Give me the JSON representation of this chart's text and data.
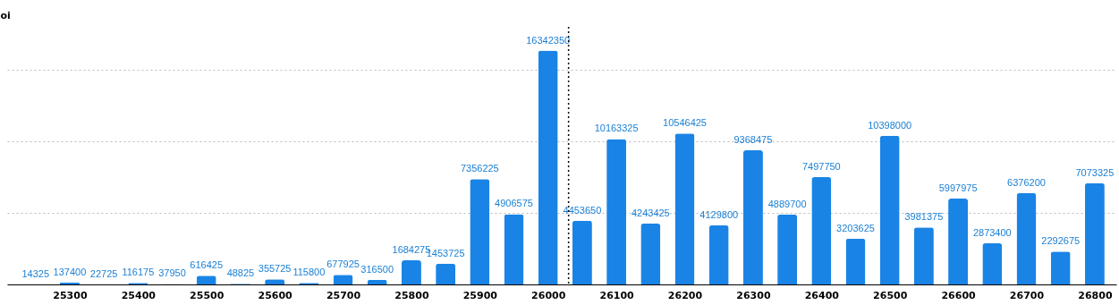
{
  "chart_data": {
    "type": "bar",
    "ylabel": "oi",
    "x": [
      25250,
      25300,
      25350,
      25400,
      25450,
      25500,
      25550,
      25600,
      25650,
      25700,
      25750,
      25800,
      25850,
      25900,
      25950,
      26000,
      26050,
      26100,
      26150,
      26200,
      26250,
      26300,
      26350,
      26400,
      26450,
      26500,
      26550,
      26600,
      26650,
      26700,
      26750,
      26800
    ],
    "values": [
      14325,
      137400,
      22725,
      116175,
      37950,
      616425,
      48825,
      355725,
      115800,
      677925,
      316500,
      1684275,
      1453725,
      7356225,
      4906575,
      16342350,
      4453650,
      10163325,
      4243425,
      10546425,
      4129800,
      9368475,
      4889700,
      7497750,
      3203625,
      10398000,
      3981375,
      5997975,
      2873400,
      6376200,
      2292675,
      7073325
    ],
    "color": "#1a84e6",
    "xlim": [
      25215,
      26825
    ],
    "xticks": [
      25300,
      25400,
      25500,
      25600,
      25700,
      25800,
      25900,
      26000,
      26100,
      26200,
      26300,
      26400,
      26500,
      26600,
      26700,
      26800
    ],
    "ylim": [
      0,
      18000000
    ],
    "yticks": [
      {
        "value": 0,
        "label": null
      },
      {
        "value": 5000000,
        "label": null
      },
      {
        "value": 10000000,
        "label": null
      },
      {
        "value": 15000000,
        "label": null
      }
    ],
    "tick_labels": "x",
    "grid": "y",
    "data_labels": true,
    "ref_lines": [
      {
        "axis": "x",
        "value": 26030,
        "line_style": "dotted",
        "color": "#000000"
      }
    ]
  }
}
